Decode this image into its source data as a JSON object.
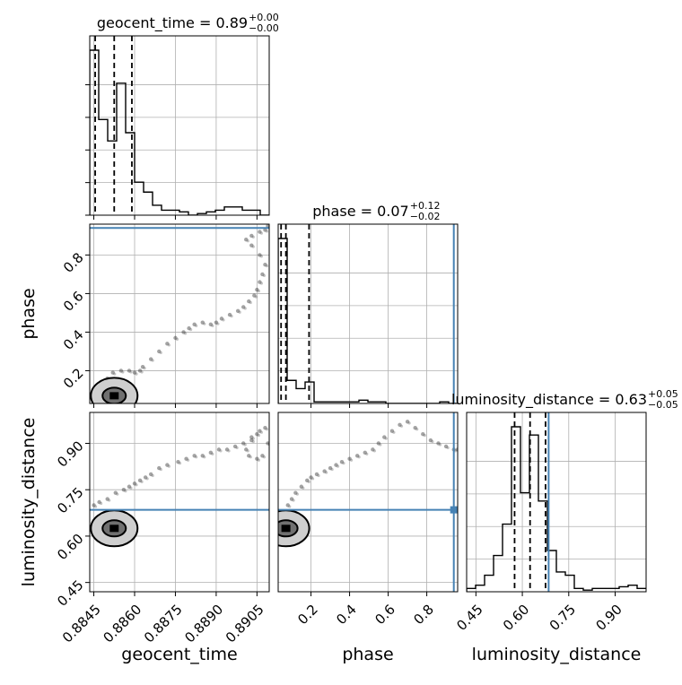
{
  "chart_data": {
    "type": "corner",
    "parameters": [
      "geocent_time",
      "phase",
      "luminosity_distance"
    ],
    "titles": [
      {
        "name": "geocent_time",
        "median": "0.89",
        "plus": "+0.00",
        "minus": "−0.00"
      },
      {
        "name": "phase",
        "median": "0.07",
        "plus": "+0.12",
        "minus": "−0.02"
      },
      {
        "name": "luminosity_distance",
        "median": "0.63",
        "plus": "+0.05",
        "minus": "−0.05"
      }
    ],
    "ranges": {
      "geocent_time": [
        0.88435,
        0.89095
      ],
      "phase": [
        0.03,
        0.96
      ],
      "luminosity_distance": [
        0.42,
        1.0
      ]
    },
    "ticks": {
      "geocent_time": {
        "values": [
          0.8845,
          0.886,
          0.8875,
          0.889,
          0.8905
        ],
        "labels": [
          "0.8845",
          "0.8860",
          "0.8875",
          "0.8890",
          "0.8905"
        ]
      },
      "phase": {
        "values": [
          0.2,
          0.4,
          0.6,
          0.8
        ],
        "labels": [
          "0.2",
          "0.4",
          "0.6",
          "0.8"
        ]
      },
      "luminosity_distance": {
        "values": [
          0.45,
          0.6,
          0.75,
          0.9
        ],
        "labels": [
          "0.45",
          "0.60",
          "0.75",
          "0.90"
        ]
      }
    },
    "truth": {
      "geocent_time": null,
      "phase": 0.94,
      "luminosity_distance": 0.685
    },
    "quantiles": {
      "geocent_time": [
        0.88455,
        0.88525,
        0.8859
      ],
      "phase": [
        0.045,
        0.07,
        0.19
      ],
      "luminosity_distance": [
        0.575,
        0.625,
        0.675
      ]
    },
    "histograms": {
      "geocent_time": {
        "edges": [
          0.88435,
          0.88468,
          0.88501,
          0.88534,
          0.88567,
          0.886,
          0.88633,
          0.88666,
          0.88699,
          0.88732,
          0.88765,
          0.88798,
          0.88831,
          0.88864,
          0.88897,
          0.8893,
          0.88963,
          0.88996,
          0.89029,
          0.89062,
          0.89095
        ],
        "values": [
          1.0,
          0.58,
          0.45,
          0.8,
          0.5,
          0.2,
          0.14,
          0.06,
          0.03,
          0.03,
          0.02,
          0.0,
          0.01,
          0.02,
          0.03,
          0.05,
          0.05,
          0.03,
          0.03,
          0.0
        ]
      },
      "phase": {
        "edges": [
          0.03,
          0.0765,
          0.123,
          0.1695,
          0.216,
          0.2625,
          0.309,
          0.3555,
          0.402,
          0.4485,
          0.495,
          0.5415,
          0.588,
          0.6345,
          0.681,
          0.7275,
          0.774,
          0.8205,
          0.867,
          0.9135,
          0.96
        ],
        "values": [
          1.0,
          0.14,
          0.09,
          0.13,
          0.01,
          0.01,
          0.01,
          0.01,
          0.01,
          0.02,
          0.01,
          0.01,
          0.0,
          0.0,
          0.0,
          0.0,
          0.0,
          0.0,
          0.01,
          0.0
        ]
      },
      "luminosity_distance": {
        "edges": [
          0.42,
          0.449,
          0.478,
          0.507,
          0.536,
          0.565,
          0.594,
          0.623,
          0.652,
          0.681,
          0.71,
          0.739,
          0.768,
          0.797,
          0.826,
          0.855,
          0.884,
          0.913,
          0.942,
          0.971,
          1.0
        ],
        "values": [
          0.02,
          0.04,
          0.1,
          0.22,
          0.41,
          1.0,
          0.6,
          0.95,
          0.55,
          0.25,
          0.12,
          0.1,
          0.02,
          0.01,
          0.02,
          0.02,
          0.02,
          0.03,
          0.04,
          0.02
        ]
      }
    },
    "samples": {
      "geocent_time_vs_phase": {
        "x": [
          0.8844,
          0.8846,
          0.8848,
          0.885,
          0.8852,
          0.8855,
          0.8858,
          0.886,
          0.8862,
          0.8863,
          0.8866,
          0.8869,
          0.8872,
          0.8875,
          0.8878,
          0.888,
          0.8882,
          0.8885,
          0.8888,
          0.889,
          0.8892,
          0.8895,
          0.8898,
          0.89,
          0.8902,
          0.8904,
          0.8905,
          0.8906,
          0.8907,
          0.8908,
          0.8906,
          0.8903,
          0.8901,
          0.8903,
          0.8906,
          0.8908,
          0.8909
        ],
        "y": [
          0.06,
          0.09,
          0.12,
          0.16,
          0.19,
          0.2,
          0.2,
          0.19,
          0.2,
          0.22,
          0.26,
          0.3,
          0.34,
          0.37,
          0.4,
          0.42,
          0.44,
          0.45,
          0.44,
          0.45,
          0.47,
          0.49,
          0.51,
          0.53,
          0.56,
          0.59,
          0.62,
          0.66,
          0.7,
          0.75,
          0.8,
          0.85,
          0.88,
          0.9,
          0.92,
          0.93,
          0.95
        ]
      },
      "geocent_time_vs_luminosity_distance": {
        "x": [
          0.8845,
          0.8847,
          0.885,
          0.8853,
          0.8856,
          0.8858,
          0.886,
          0.8862,
          0.8864,
          0.8866,
          0.8869,
          0.8872,
          0.8876,
          0.8879,
          0.8882,
          0.8885,
          0.8888,
          0.8891,
          0.8894,
          0.8897,
          0.89,
          0.8903,
          0.8906,
          0.8908,
          0.8905,
          0.8903,
          0.8901,
          0.8902,
          0.8905,
          0.8907,
          0.8909
        ],
        "y": [
          0.7,
          0.71,
          0.72,
          0.74,
          0.75,
          0.76,
          0.77,
          0.78,
          0.79,
          0.8,
          0.82,
          0.83,
          0.84,
          0.85,
          0.86,
          0.86,
          0.87,
          0.88,
          0.88,
          0.89,
          0.9,
          0.92,
          0.94,
          0.95,
          0.93,
          0.91,
          0.88,
          0.86,
          0.85,
          0.86,
          0.9
        ]
      },
      "phase_vs_luminosity_distance": {
        "x": [
          0.08,
          0.1,
          0.12,
          0.15,
          0.18,
          0.2,
          0.23,
          0.27,
          0.3,
          0.33,
          0.36,
          0.4,
          0.44,
          0.48,
          0.52,
          0.55,
          0.58,
          0.62,
          0.66,
          0.7,
          0.74,
          0.78,
          0.82,
          0.86,
          0.9,
          0.94,
          0.96
        ],
        "y": [
          0.7,
          0.72,
          0.74,
          0.76,
          0.78,
          0.79,
          0.8,
          0.81,
          0.82,
          0.83,
          0.84,
          0.85,
          0.86,
          0.87,
          0.88,
          0.9,
          0.92,
          0.94,
          0.96,
          0.97,
          0.95,
          0.93,
          0.91,
          0.9,
          0.89,
          0.88,
          0.88
        ]
      }
    },
    "grid": true
  }
}
